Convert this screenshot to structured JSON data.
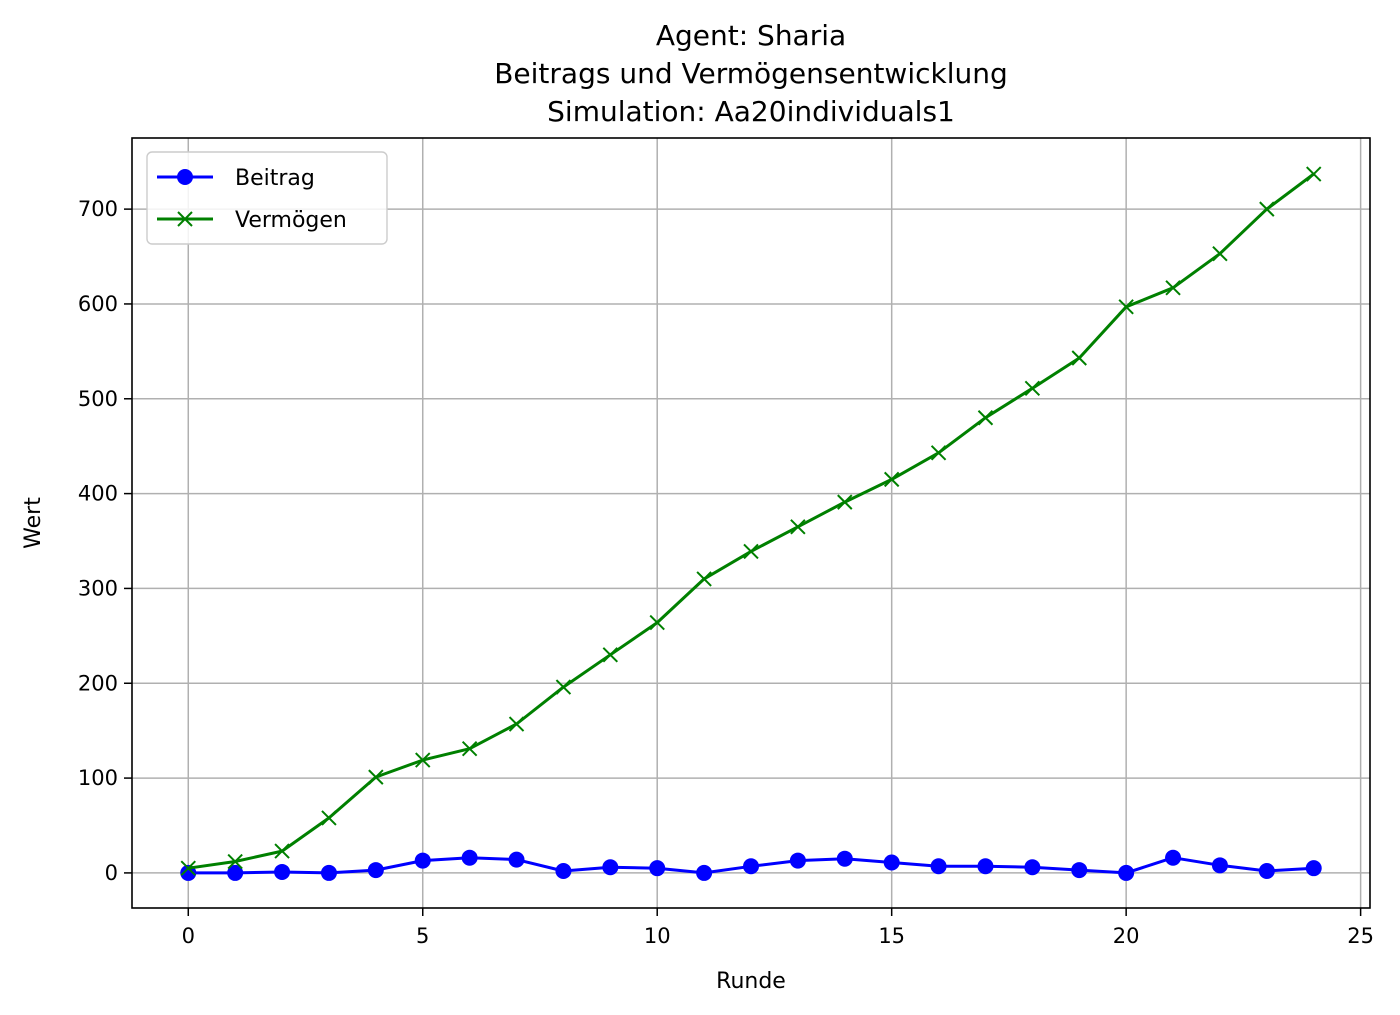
{
  "chart_data": {
    "type": "line",
    "title_lines": [
      "Agent: Sharia",
      "Beitrags und Vermögensentwicklung",
      "Simulation: Aa20individuals1"
    ],
    "xlabel": "Runde",
    "ylabel": "Wert",
    "xlim": [
      -1.2,
      25.2
    ],
    "ylim": [
      -37,
      775
    ],
    "xticks": [
      0,
      5,
      10,
      15,
      20,
      25
    ],
    "yticks": [
      0,
      100,
      200,
      300,
      400,
      500,
      600,
      700
    ],
    "grid": true,
    "legend": "top-left",
    "x": [
      0,
      1,
      2,
      3,
      4,
      5,
      6,
      7,
      8,
      9,
      10,
      11,
      12,
      13,
      14,
      15,
      16,
      17,
      18,
      19,
      20,
      21,
      22,
      23,
      24
    ],
    "series": [
      {
        "name": "Beitrag",
        "color": "#0000ff",
        "marker": "circle",
        "values": [
          0,
          0,
          1,
          0,
          3,
          13,
          16,
          14,
          2,
          6,
          5,
          0,
          7,
          13,
          15,
          11,
          7,
          7,
          6,
          3,
          0,
          16,
          8,
          2,
          5
        ]
      },
      {
        "name": "Vermögen",
        "color": "#008000",
        "marker": "x",
        "values": [
          5,
          12,
          23,
          58,
          101,
          119,
          131,
          157,
          196,
          230,
          264,
          310,
          339,
          365,
          391,
          415,
          443,
          480,
          511,
          543,
          597,
          617,
          653,
          700,
          737
        ]
      }
    ]
  }
}
